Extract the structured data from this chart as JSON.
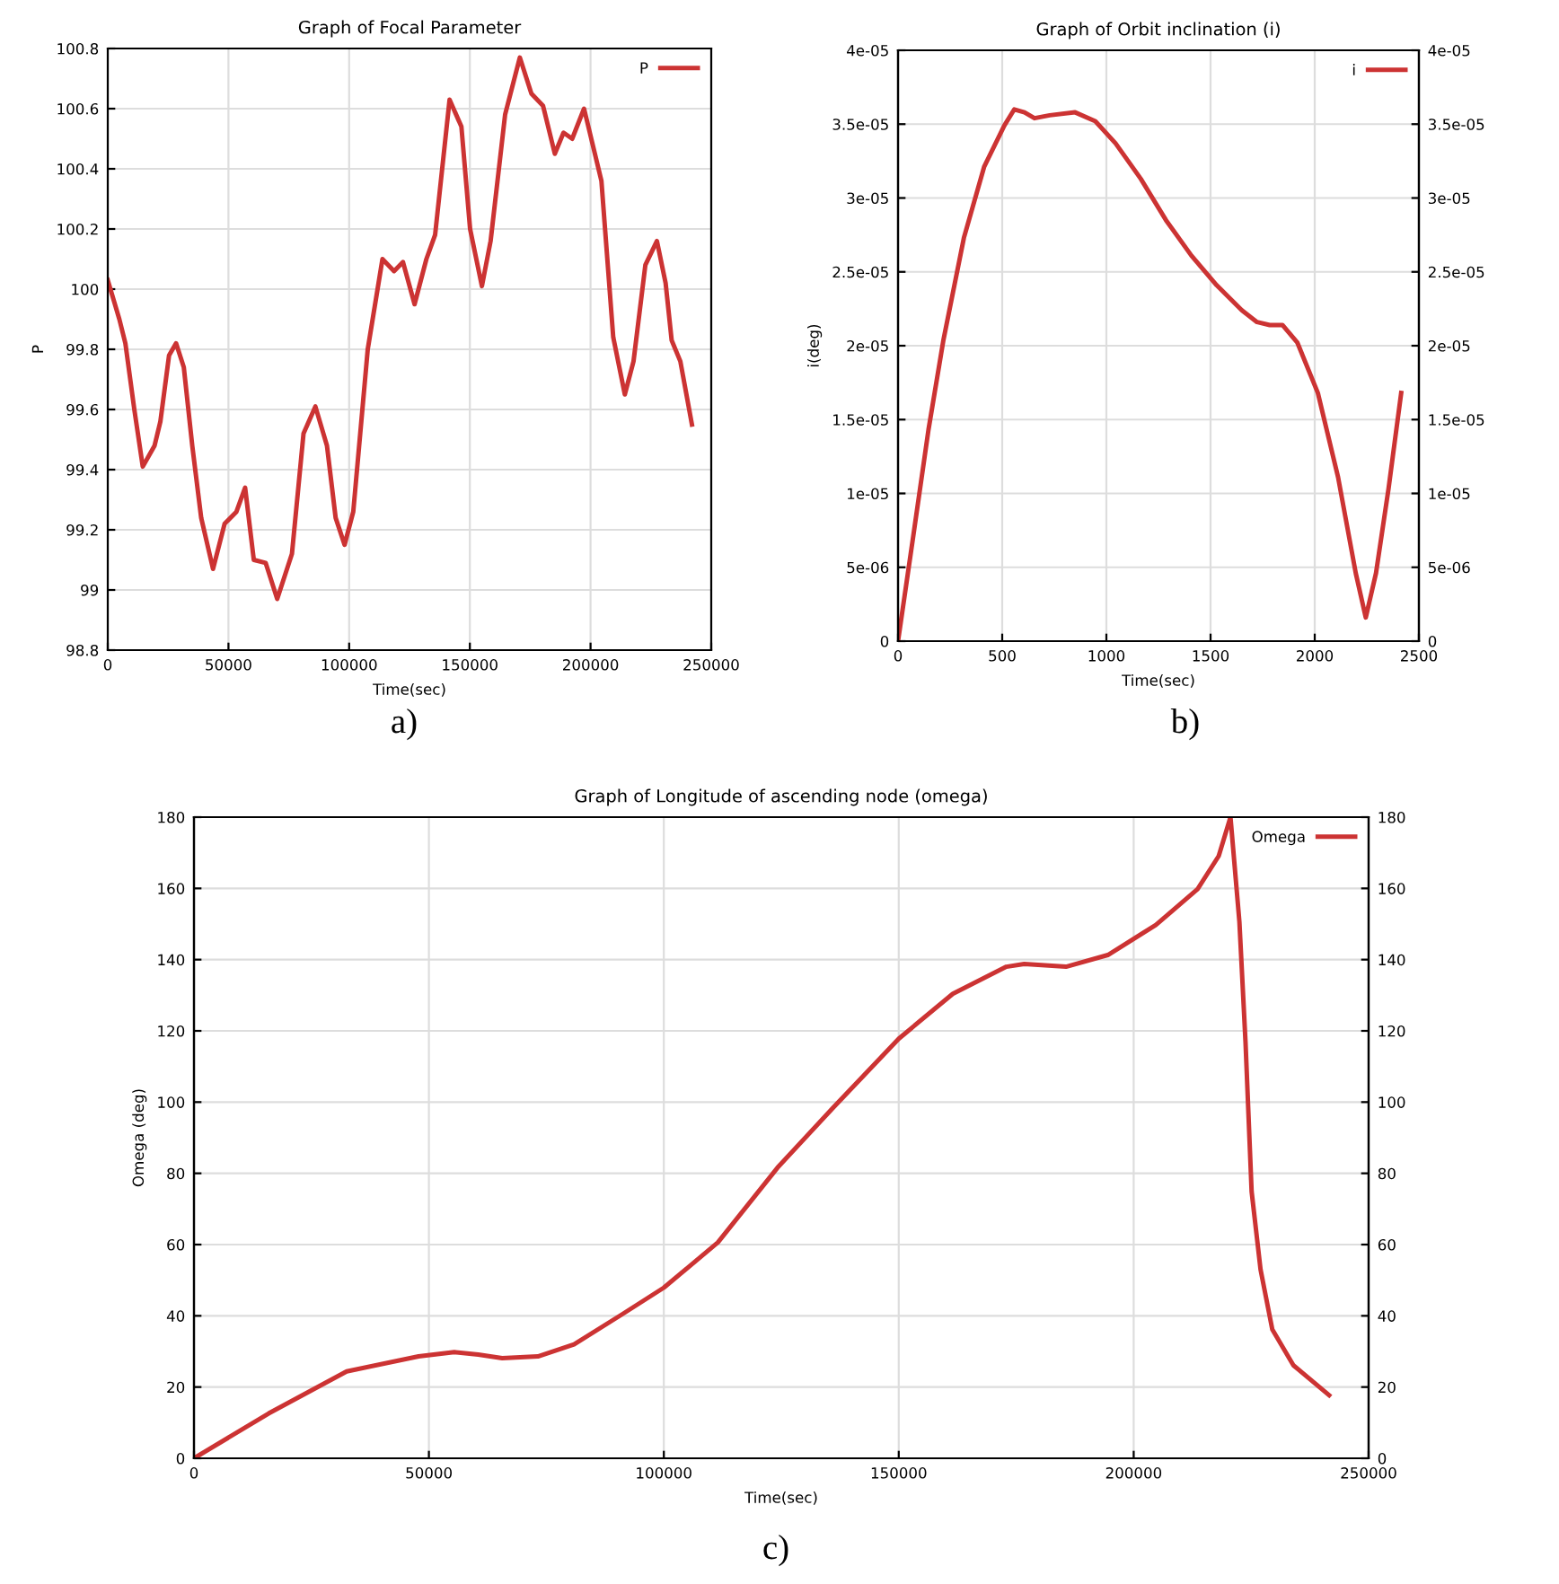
{
  "chart_data": [
    {
      "type": "line",
      "title": "Graph of Focal Parameter",
      "xlabel": "Time(sec)",
      "ylabel": "P",
      "annotations": [
        "a)"
      ],
      "xlim": [
        0,
        250000
      ],
      "xticks": [
        0,
        50000,
        100000,
        150000,
        200000,
        250000
      ],
      "ylim": [
        98.8,
        100.8
      ],
      "yticks": [
        {
          "value": 98.8,
          "label": "98.8"
        },
        99,
        {
          "value": 99.2,
          "label": "99.2"
        },
        {
          "value": 99.4,
          "label": "99.4"
        },
        {
          "value": 99.6,
          "label": "99.6"
        },
        {
          "value": 99.8,
          "label": "99.8"
        },
        100,
        {
          "value": 100.2,
          "label": "100.2"
        },
        {
          "value": 100.4,
          "label": "100.4"
        },
        {
          "value": 100.6,
          "label": "100.6"
        },
        {
          "value": 100.8,
          "label": "100.8"
        }
      ],
      "grid": true,
      "legend": "top right",
      "series": [
        {
          "name": "P",
          "color": "#cc3333",
          "x": [
            0,
            4800,
            7300,
            11000,
            14500,
            19400,
            21800,
            25400,
            28300,
            31500,
            35000,
            38700,
            43600,
            48400,
            53300,
            56900,
            60500,
            65400,
            70200,
            76300,
            81100,
            86000,
            90800,
            94400,
            98100,
            101700,
            107700,
            113800,
            118600,
            122300,
            127100,
            132000,
            135600,
            141600,
            146500,
            150100,
            155000,
            158600,
            164600,
            170700,
            175500,
            180300,
            185200,
            188800,
            192400,
            197300,
            204500,
            209400,
            214200,
            217800,
            222700,
            227500,
            231100,
            233600,
            237200,
            242000
          ],
          "values": [
            100.03,
            99.9,
            99.82,
            99.6,
            99.41,
            99.48,
            99.56,
            99.78,
            99.82,
            99.74,
            99.48,
            99.24,
            99.07,
            99.22,
            99.26,
            99.34,
            99.1,
            99.09,
            98.97,
            99.12,
            99.52,
            99.61,
            99.48,
            99.24,
            99.15,
            99.26,
            99.8,
            100.1,
            100.06,
            100.09,
            99.95,
            100.1,
            100.18,
            100.63,
            100.54,
            100.2,
            100.01,
            100.16,
            100.58,
            100.77,
            100.65,
            100.61,
            100.45,
            100.52,
            100.5,
            100.6,
            100.36,
            99.84,
            99.65,
            99.76,
            100.08,
            100.16,
            100.02,
            99.83,
            99.76,
            99.55
          ]
        }
      ]
    },
    {
      "type": "line",
      "title": "Graph of Orbit inclination (i)",
      "xlabel": "Time(sec)",
      "ylabel": "i(deg)",
      "annotations": [
        "b)"
      ],
      "xlim": [
        0,
        2500
      ],
      "xticks": [
        0,
        500,
        1000,
        1500,
        2000,
        2500
      ],
      "ylim": [
        0,
        4e-05
      ],
      "yticks": [
        0,
        {
          "value": 5e-06,
          "label": "5e-06"
        },
        {
          "value": 1e-05,
          "label": "1e-05"
        },
        {
          "value": 1.5e-05,
          "label": "1.5e-05"
        },
        {
          "value": 2e-05,
          "label": "2e-05"
        },
        {
          "value": 2.5e-05,
          "label": "2.5e-05"
        },
        {
          "value": 3e-05,
          "label": "3e-05"
        },
        {
          "value": 3.5e-05,
          "label": "3.5e-05"
        },
        {
          "value": 4e-05,
          "label": "4e-05"
        }
      ],
      "y2lim": [
        0,
        4e-05
      ],
      "y2ticks": [
        0,
        {
          "value": 5e-06,
          "label": "5e-06"
        },
        {
          "value": 1e-05,
          "label": "1e-05"
        },
        {
          "value": 1.5e-05,
          "label": "1.5e-05"
        },
        {
          "value": 2e-05,
          "label": "2e-05"
        },
        {
          "value": 2.5e-05,
          "label": "2.5e-05"
        },
        {
          "value": 3e-05,
          "label": "3e-05"
        },
        {
          "value": 3.5e-05,
          "label": "3.5e-05"
        },
        {
          "value": 4e-05,
          "label": "4e-05"
        }
      ],
      "grid": true,
      "legend": "top right",
      "series": [
        {
          "name": "i",
          "color": "#cc3333",
          "x": [
            0,
            73,
            146,
            218,
            316,
            413,
            510,
            558,
            607,
            655,
            728,
            850,
            947,
            1044,
            1165,
            1286,
            1408,
            1529,
            1650,
            1723,
            1784,
            1845,
            1917,
            2015,
            2112,
            2197,
            2245,
            2294,
            2354,
            2415
          ],
          "values": [
            0,
            7.1e-06,
            1.43e-05,
            2.04e-05,
            2.73e-05,
            3.21e-05,
            3.49e-05,
            3.6e-05,
            3.58e-05,
            3.54e-05,
            3.56e-05,
            3.58e-05,
            3.52e-05,
            3.37e-05,
            3.13e-05,
            2.85e-05,
            2.61e-05,
            2.41e-05,
            2.24e-05,
            2.16e-05,
            2.14e-05,
            2.14e-05,
            2.02e-05,
            1.68e-05,
            1.11e-05,
            4.6e-06,
            1.6e-06,
            4.6e-06,
            1.03e-05,
            1.68e-05
          ]
        }
      ]
    },
    {
      "type": "line",
      "title": "Graph of Longitude of ascending node (omega)",
      "xlabel": "Time(sec)",
      "ylabel": "Omega (deg)",
      "annotations": [
        "c)"
      ],
      "xlim": [
        0,
        250000
      ],
      "xticks": [
        0,
        50000,
        100000,
        150000,
        200000,
        250000
      ],
      "ylim": [
        0,
        180
      ],
      "yticks": [
        0,
        20,
        40,
        60,
        80,
        100,
        120,
        140,
        160,
        180
      ],
      "y2lim": [
        0,
        180
      ],
      "y2ticks": [
        0,
        20,
        40,
        60,
        80,
        100,
        120,
        140,
        160,
        180
      ],
      "grid": true,
      "legend": "top right",
      "series": [
        {
          "name": "Omega",
          "color": "#cc3333",
          "x": [
            0,
            15900,
            32500,
            47800,
            55400,
            60500,
            65600,
            73200,
            80900,
            91100,
            100000,
            111500,
            124200,
            136000,
            150000,
            161500,
            172900,
            176700,
            185600,
            194500,
            204700,
            213600,
            218100,
            220600,
            222500,
            223800,
            225100,
            227000,
            229500,
            234000,
            241600
          ],
          "values": [
            0,
            12.6,
            24.4,
            28.6,
            29.8,
            29.1,
            28.1,
            28.6,
            32.0,
            40.4,
            47.9,
            60.6,
            81.6,
            98.4,
            117.8,
            130.4,
            138.0,
            138.8,
            138.0,
            141.3,
            149.7,
            159.8,
            169.1,
            180,
            150.6,
            116.9,
            74.9,
            53.0,
            36.2,
            26.1,
            17.7
          ]
        }
      ]
    }
  ]
}
